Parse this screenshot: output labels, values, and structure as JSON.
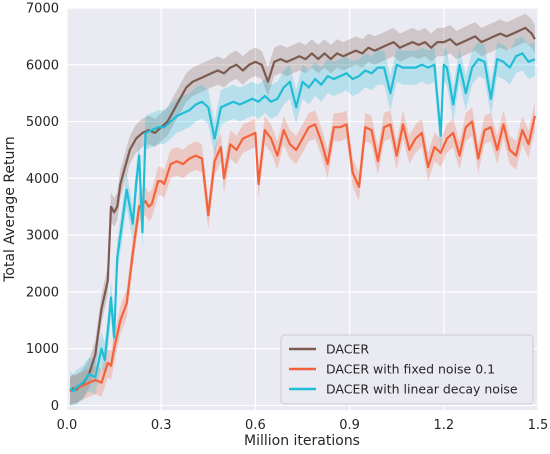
{
  "chart_data": {
    "type": "line",
    "xlabel": "Million iterations",
    "ylabel": "Total Average Return",
    "xlim": [
      0,
      1.5
    ],
    "ylim": [
      -80,
      7000
    ],
    "xticks": [
      0.0,
      0.3,
      0.6,
      0.9,
      1.2,
      1.5
    ],
    "xtick_labels": [
      "0.0",
      "0.3",
      "0.6",
      "0.9",
      "1.2",
      "1.5"
    ],
    "yticks": [
      0,
      1000,
      2000,
      3000,
      4000,
      5000,
      6000,
      7000
    ],
    "ytick_labels": [
      "0",
      "1000",
      "2000",
      "3000",
      "4000",
      "5000",
      "6000",
      "7000"
    ],
    "grid": true,
    "background": "#eaeaf2",
    "legend_position": "lower-right",
    "series": [
      {
        "name": "DACER",
        "color": "#7d5a50",
        "x": [
          0.01,
          0.02,
          0.03,
          0.05,
          0.07,
          0.09,
          0.11,
          0.13,
          0.14,
          0.15,
          0.16,
          0.17,
          0.18,
          0.19,
          0.2,
          0.22,
          0.24,
          0.26,
          0.28,
          0.3,
          0.32,
          0.34,
          0.36,
          0.38,
          0.4,
          0.42,
          0.44,
          0.46,
          0.48,
          0.5,
          0.52,
          0.54,
          0.56,
          0.58,
          0.6,
          0.62,
          0.64,
          0.66,
          0.68,
          0.7,
          0.72,
          0.74,
          0.76,
          0.78,
          0.8,
          0.82,
          0.84,
          0.86,
          0.88,
          0.9,
          0.92,
          0.94,
          0.96,
          0.98,
          1.0,
          1.02,
          1.04,
          1.06,
          1.08,
          1.1,
          1.12,
          1.14,
          1.16,
          1.18,
          1.2,
          1.22,
          1.24,
          1.26,
          1.28,
          1.3,
          1.32,
          1.34,
          1.36,
          1.38,
          1.4,
          1.42,
          1.44,
          1.46,
          1.48,
          1.49
        ],
        "y": [
          250,
          300,
          280,
          380,
          550,
          900,
          1700,
          2200,
          3500,
          3400,
          3500,
          3900,
          4100,
          4300,
          4500,
          4700,
          4800,
          4850,
          4800,
          4900,
          5000,
          5200,
          5400,
          5600,
          5700,
          5750,
          5800,
          5850,
          5900,
          5850,
          5950,
          6000,
          5900,
          6000,
          6050,
          6000,
          5700,
          6050,
          6100,
          6050,
          6100,
          6150,
          6100,
          6200,
          6100,
          6200,
          6100,
          6200,
          6150,
          6200,
          6250,
          6200,
          6300,
          6250,
          6300,
          6350,
          6400,
          6300,
          6350,
          6400,
          6350,
          6400,
          6300,
          6400,
          6400,
          6450,
          6350,
          6400,
          6450,
          6500,
          6400,
          6450,
          6500,
          6550,
          6500,
          6550,
          6600,
          6650,
          6550,
          6450
        ],
        "band": 250
      },
      {
        "name": "DACER with fixed noise 0.1",
        "color": "#f4623a",
        "x": [
          0.01,
          0.03,
          0.05,
          0.07,
          0.09,
          0.11,
          0.13,
          0.14,
          0.15,
          0.17,
          0.19,
          0.21,
          0.23,
          0.25,
          0.26,
          0.27,
          0.29,
          0.3,
          0.31,
          0.33,
          0.35,
          0.37,
          0.39,
          0.41,
          0.43,
          0.45,
          0.47,
          0.49,
          0.5,
          0.52,
          0.54,
          0.56,
          0.58,
          0.6,
          0.61,
          0.63,
          0.65,
          0.67,
          0.69,
          0.71,
          0.73,
          0.75,
          0.77,
          0.79,
          0.81,
          0.83,
          0.85,
          0.87,
          0.89,
          0.91,
          0.93,
          0.95,
          0.97,
          0.99,
          1.01,
          1.03,
          1.05,
          1.07,
          1.09,
          1.11,
          1.13,
          1.15,
          1.17,
          1.19,
          1.21,
          1.23,
          1.25,
          1.27,
          1.29,
          1.31,
          1.33,
          1.35,
          1.37,
          1.39,
          1.41,
          1.43,
          1.45,
          1.47,
          1.49
        ],
        "y": [
          250,
          300,
          350,
          400,
          450,
          400,
          750,
          700,
          1000,
          1500,
          1800,
          2700,
          3500,
          3600,
          3500,
          3550,
          3950,
          3950,
          3900,
          4250,
          4300,
          4250,
          4350,
          4400,
          4350,
          3350,
          4300,
          4550,
          4000,
          4600,
          4500,
          4700,
          4750,
          4800,
          3900,
          4850,
          4700,
          4400,
          4850,
          4600,
          4500,
          4700,
          4900,
          4950,
          4650,
          4250,
          4900,
          4900,
          4950,
          4100,
          3850,
          4900,
          4850,
          4300,
          4900,
          4950,
          4400,
          4950,
          4500,
          4700,
          4800,
          4200,
          4550,
          4450,
          4700,
          4800,
          4400,
          4900,
          5000,
          4350,
          4850,
          4900,
          4500,
          4950,
          4500,
          4400,
          4850,
          4600,
          5100
        ],
        "band": 250
      },
      {
        "name": "DACER with linear decay noise",
        "color": "#1fbdd6",
        "x": [
          0.01,
          0.02,
          0.03,
          0.05,
          0.07,
          0.09,
          0.11,
          0.12,
          0.13,
          0.14,
          0.15,
          0.16,
          0.17,
          0.19,
          0.21,
          0.22,
          0.23,
          0.24,
          0.25,
          0.27,
          0.29,
          0.31,
          0.33,
          0.35,
          0.37,
          0.39,
          0.41,
          0.43,
          0.45,
          0.47,
          0.49,
          0.51,
          0.53,
          0.55,
          0.57,
          0.59,
          0.61,
          0.63,
          0.65,
          0.67,
          0.69,
          0.71,
          0.73,
          0.75,
          0.77,
          0.79,
          0.81,
          0.83,
          0.85,
          0.87,
          0.89,
          0.91,
          0.93,
          0.95,
          0.97,
          0.99,
          1.01,
          1.03,
          1.05,
          1.07,
          1.09,
          1.11,
          1.13,
          1.15,
          1.17,
          1.19,
          1.2,
          1.21,
          1.23,
          1.25,
          1.27,
          1.29,
          1.31,
          1.33,
          1.35,
          1.37,
          1.39,
          1.41,
          1.43,
          1.45,
          1.47,
          1.49
        ],
        "y": [
          300,
          250,
          320,
          400,
          550,
          500,
          1000,
          800,
          1300,
          1900,
          1200,
          2600,
          3000,
          3800,
          3200,
          3900,
          4400,
          3050,
          4800,
          4850,
          4900,
          4900,
          5000,
          5100,
          5150,
          5200,
          5300,
          5350,
          5250,
          4700,
          5250,
          5300,
          5350,
          5300,
          5350,
          5400,
          5350,
          5450,
          5350,
          5400,
          5600,
          5700,
          5250,
          5700,
          5600,
          5750,
          5650,
          5800,
          5750,
          5800,
          5850,
          5750,
          5800,
          5900,
          5850,
          5950,
          5950,
          5500,
          6000,
          5950,
          5950,
          5950,
          6000,
          5950,
          6000,
          4750,
          6000,
          5950,
          5300,
          6000,
          5500,
          5950,
          6100,
          6050,
          5400,
          6100,
          6050,
          5950,
          6150,
          6200,
          6050,
          6100
        ],
        "band": 300
      }
    ]
  }
}
